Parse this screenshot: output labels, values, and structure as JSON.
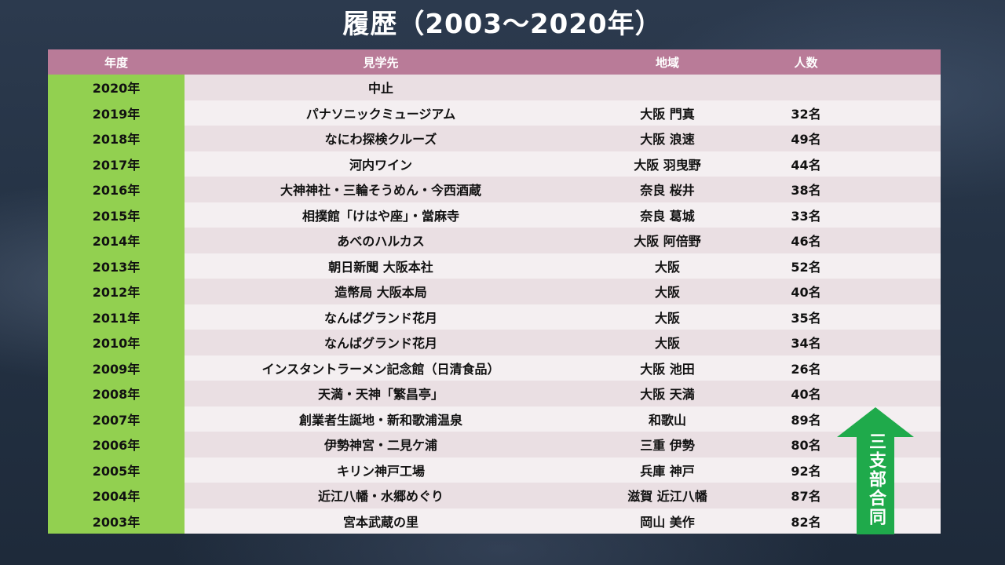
{
  "title": "履歴（2003～2020年）",
  "headers": {
    "year": "年度",
    "place": "見学先",
    "region": "地域",
    "count": "人数"
  },
  "rows": [
    {
      "year": "2020年",
      "place": "中止",
      "region": "",
      "count": ""
    },
    {
      "year": "2019年",
      "place": "パナソニックミュージアム",
      "region": "大阪 門真",
      "count": "32名"
    },
    {
      "year": "2018年",
      "place": "なにわ探検クルーズ",
      "region": "大阪 浪速",
      "count": "49名"
    },
    {
      "year": "2017年",
      "place": "河内ワイン",
      "region": "大阪 羽曳野",
      "count": "44名"
    },
    {
      "year": "2016年",
      "place": "大神神社・三輪そうめん・今西酒蔵",
      "region": "奈良 桜井",
      "count": "38名"
    },
    {
      "year": "2015年",
      "place": "相撲館「けはや座」・當麻寺",
      "region": "奈良 葛城",
      "count": "33名"
    },
    {
      "year": "2014年",
      "place": "あべのハルカス",
      "region": "大阪 阿倍野",
      "count": "46名"
    },
    {
      "year": "2013年",
      "place": "朝日新聞 大阪本社",
      "region": "大阪",
      "count": "52名"
    },
    {
      "year": "2012年",
      "place": "造幣局 大阪本局",
      "region": "大阪",
      "count": "40名"
    },
    {
      "year": "2011年",
      "place": "なんばグランド花月",
      "region": "大阪",
      "count": "35名"
    },
    {
      "year": "2010年",
      "place": "なんばグランド花月",
      "region": "大阪",
      "count": "34名"
    },
    {
      "year": "2009年",
      "place": "インスタントラーメン記念館（日清食品）",
      "region": "大阪 池田",
      "count": "26名"
    },
    {
      "year": "2008年",
      "place": "天満・天神「繁昌亭」",
      "region": "大阪 天満",
      "count": "40名"
    },
    {
      "year": "2007年",
      "place": "創業者生誕地・新和歌浦温泉",
      "region": "和歌山",
      "count": "89名"
    },
    {
      "year": "2006年",
      "place": "伊勢神宮・二見ケ浦",
      "region": "三重 伊勢",
      "count": "80名"
    },
    {
      "year": "2005年",
      "place": "キリン神戸工場",
      "region": "兵庫 神戸",
      "count": "92名"
    },
    {
      "year": "2004年",
      "place": "近江八幡・水郷めぐり",
      "region": "滋賀 近江八幡",
      "count": "87名"
    },
    {
      "year": "2003年",
      "place": "宮本武蔵の里",
      "region": "岡山 美作",
      "count": "82名"
    }
  ],
  "arrow_label": "三支部合同",
  "colors": {
    "header": "#b97b98",
    "year_col": "#92d050",
    "arrow": "#1faa4b"
  }
}
